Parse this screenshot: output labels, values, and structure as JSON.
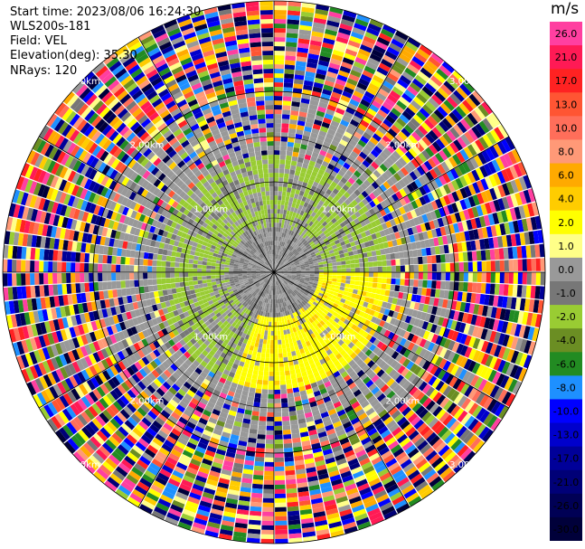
{
  "info": {
    "start_time": "Start time: 2023/08/06 16:24:30",
    "instrument": "WLS200s-181",
    "field": "Field: VEL",
    "elevation": "Elevation(deg): 35.30",
    "nrays": "NRays: 120"
  },
  "chart_data": {
    "type": "heatmap",
    "projection": "polar-ppi",
    "field": "VEL",
    "units_label": "m/s",
    "nrays": 120,
    "max_range_km": 3.0,
    "range_rings_km": [
      1.0,
      2.0,
      3.0
    ],
    "range_ring_labels": [
      "1.00km",
      "2.00km",
      "3.00km"
    ],
    "spokes_deg": [
      0,
      30,
      60,
      90,
      120,
      150,
      180,
      210,
      240,
      270,
      300,
      330
    ],
    "colorbar": {
      "ticks": [
        "26.0",
        "21.0",
        "17.0",
        "13.0",
        "10.0",
        "8.0",
        "6.0",
        "4.0",
        "2.0",
        "1.0",
        "0.0",
        "-1.0",
        "-2.0",
        "-4.0",
        "-6.0",
        "-8.0",
        "-10.0",
        "-13.0",
        "-17.0",
        "-21.0",
        "-26.0",
        "-30.0"
      ],
      "colors": [
        "#ff3fa0",
        "#ff1a55",
        "#ff2222",
        "#ff5533",
        "#ff6e5a",
        "#ff9977",
        "#ffaa00",
        "#ffcc00",
        "#ffff00",
        "#ffff88",
        "#999999",
        "#777777",
        "#99cc33",
        "#6b8e23",
        "#228b22",
        "#1e90ff",
        "#0000ff",
        "#0000cc",
        "#000099",
        "#000077",
        "#000055",
        "#00003a"
      ]
    },
    "regions": [
      {
        "range_km": [
          0.0,
          0.5
        ],
        "description": "near-zero velocities",
        "dominant_values": [
          0.0,
          -1.0
        ]
      },
      {
        "range_km": [
          0.5,
          1.3
        ],
        "azimuth_deg": [
          200,
          360
        ],
        "dominant_values": [
          -2.0,
          -1.0
        ]
      },
      {
        "range_km": [
          0.5,
          1.3
        ],
        "azimuth_deg": [
          90,
          200
        ],
        "dominant_values": [
          2.0,
          4.0
        ]
      },
      {
        "range_km": [
          1.3,
          3.0
        ],
        "description": "noisy returns spanning full scale",
        "dominant_values": [
          -30.0,
          26.0
        ]
      }
    ]
  }
}
